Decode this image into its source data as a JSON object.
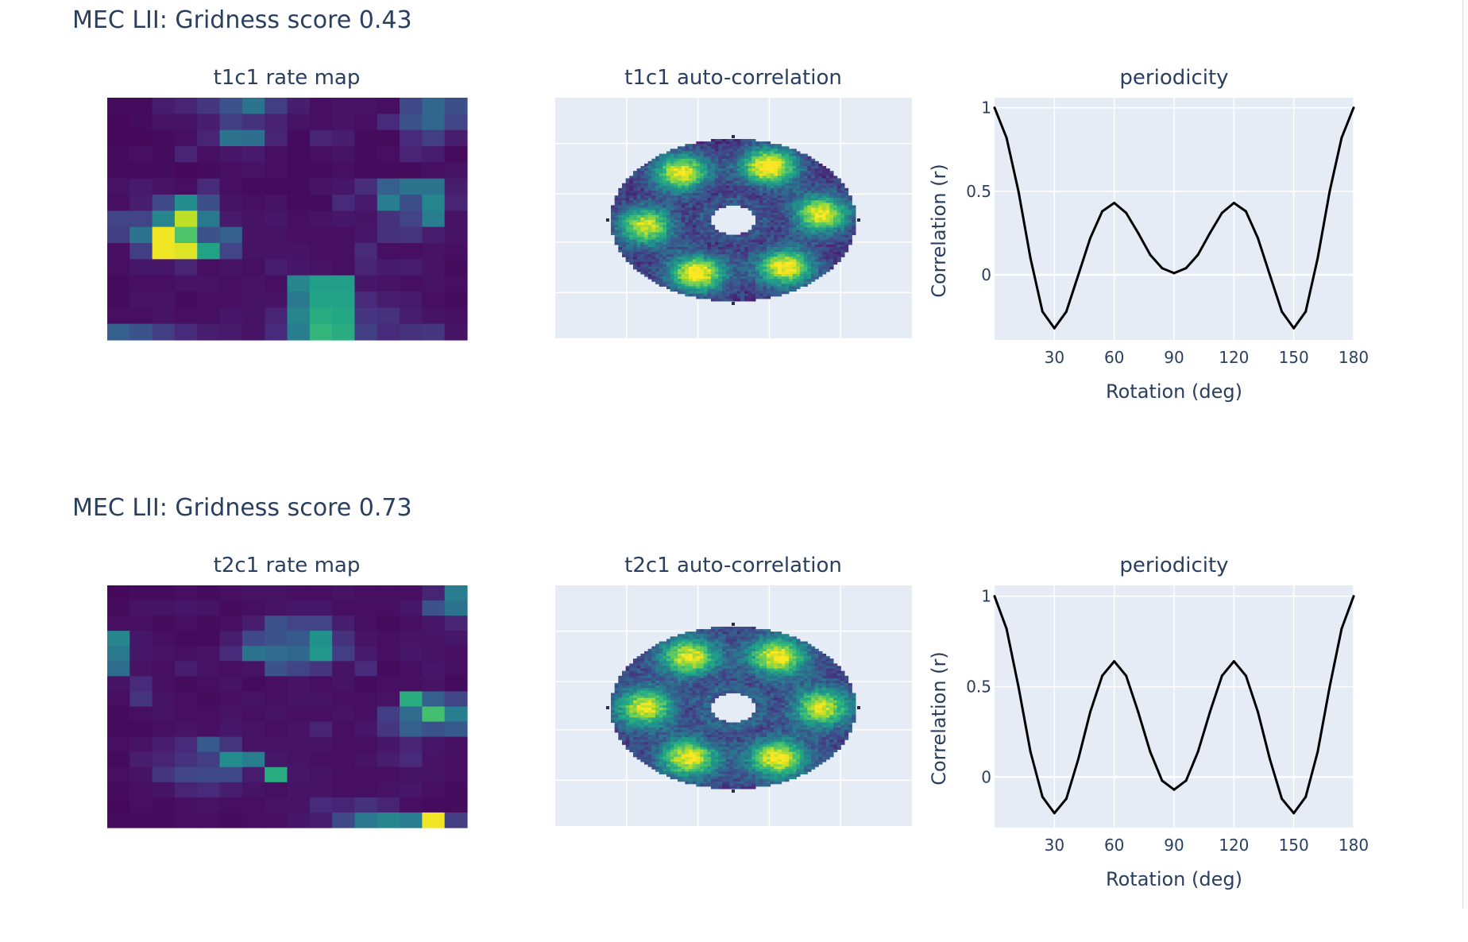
{
  "figures": [
    {
      "title": "MEC LII: Gridness score 0.43",
      "panels": {
        "rate_map_title": "t1c1 rate map",
        "autocorr_title": "t1c1 auto-correlation",
        "periodicity_title": "periodicity"
      },
      "rate_map": [
        [
          0.03,
          0.03,
          0.08,
          0.1,
          0.16,
          0.25,
          0.38,
          0.18,
          0.08,
          0.04,
          0.05,
          0.05,
          0.04,
          0.22,
          0.33,
          0.24
        ],
        [
          0.02,
          0.03,
          0.05,
          0.05,
          0.08,
          0.18,
          0.14,
          0.09,
          0.05,
          0.04,
          0.05,
          0.04,
          0.12,
          0.25,
          0.33,
          0.2
        ],
        [
          0.02,
          0.02,
          0.03,
          0.04,
          0.1,
          0.38,
          0.36,
          0.1,
          0.03,
          0.1,
          0.08,
          0.03,
          0.03,
          0.12,
          0.18,
          0.08
        ],
        [
          0.03,
          0.04,
          0.03,
          0.1,
          0.04,
          0.06,
          0.07,
          0.04,
          0.03,
          0.04,
          0.05,
          0.03,
          0.04,
          0.1,
          0.08,
          0.03
        ],
        [
          0.03,
          0.03,
          0.03,
          0.02,
          0.03,
          0.04,
          0.05,
          0.04,
          0.03,
          0.03,
          0.04,
          0.03,
          0.03,
          0.03,
          0.04,
          0.05
        ],
        [
          0.05,
          0.07,
          0.05,
          0.04,
          0.12,
          0.04,
          0.03,
          0.03,
          0.03,
          0.05,
          0.06,
          0.13,
          0.3,
          0.38,
          0.38,
          0.08
        ],
        [
          0.04,
          0.08,
          0.22,
          0.48,
          0.24,
          0.05,
          0.04,
          0.05,
          0.03,
          0.03,
          0.12,
          0.07,
          0.42,
          0.24,
          0.46,
          0.1
        ],
        [
          0.2,
          0.2,
          0.45,
          0.9,
          0.4,
          0.07,
          0.05,
          0.06,
          0.04,
          0.05,
          0.06,
          0.05,
          0.14,
          0.2,
          0.42,
          0.05
        ],
        [
          0.18,
          0.38,
          0.98,
          0.72,
          0.25,
          0.3,
          0.05,
          0.05,
          0.04,
          0.04,
          0.04,
          0.06,
          0.14,
          0.15,
          0.08,
          0.05
        ],
        [
          0.04,
          0.18,
          0.98,
          0.95,
          0.58,
          0.2,
          0.05,
          0.05,
          0.05,
          0.04,
          0.04,
          0.12,
          0.04,
          0.04,
          0.05,
          0.04
        ],
        [
          0.04,
          0.06,
          0.06,
          0.1,
          0.04,
          0.05,
          0.04,
          0.08,
          0.06,
          0.05,
          0.04,
          0.1,
          0.07,
          0.08,
          0.05,
          0.03
        ],
        [
          0.03,
          0.04,
          0.04,
          0.05,
          0.05,
          0.04,
          0.05,
          0.04,
          0.45,
          0.55,
          0.55,
          0.06,
          0.05,
          0.04,
          0.05,
          0.04
        ],
        [
          0.03,
          0.05,
          0.05,
          0.03,
          0.04,
          0.04,
          0.05,
          0.05,
          0.4,
          0.58,
          0.58,
          0.12,
          0.08,
          0.07,
          0.04,
          0.03
        ],
        [
          0.04,
          0.04,
          0.05,
          0.04,
          0.04,
          0.06,
          0.05,
          0.1,
          0.45,
          0.62,
          0.6,
          0.15,
          0.14,
          0.08,
          0.05,
          0.04
        ],
        [
          0.3,
          0.26,
          0.18,
          0.12,
          0.08,
          0.07,
          0.05,
          0.12,
          0.42,
          0.65,
          0.62,
          0.18,
          0.12,
          0.14,
          0.16,
          0.05
        ]
      ],
      "autocorr": {
        "peaks": [
          {
            "angle": 0,
            "intensity": 0.85
          },
          {
            "angle": 60,
            "intensity": 0.95
          },
          {
            "angle": 120,
            "intensity": 0.85
          },
          {
            "angle": 180,
            "intensity": 0.8
          },
          {
            "angle": 240,
            "intensity": 0.9
          },
          {
            "angle": 300,
            "intensity": 0.88
          }
        ],
        "peak_radius": 0.72,
        "rotation_deg": 6,
        "background": 0.15
      },
      "chart_data": {
        "type": "line",
        "x": [
          0,
          6,
          12,
          18,
          24,
          30,
          36,
          42,
          48,
          54,
          60,
          66,
          72,
          78,
          84,
          90,
          96,
          102,
          108,
          114,
          120,
          126,
          132,
          138,
          144,
          150,
          156,
          162,
          168,
          174,
          180
        ],
        "y": [
          1.0,
          0.82,
          0.5,
          0.1,
          -0.22,
          -0.32,
          -0.22,
          0.0,
          0.22,
          0.38,
          0.43,
          0.37,
          0.25,
          0.12,
          0.04,
          0.01,
          0.04,
          0.12,
          0.25,
          0.37,
          0.43,
          0.38,
          0.22,
          0.0,
          -0.22,
          -0.32,
          -0.22,
          0.1,
          0.5,
          0.82,
          1.0
        ],
        "xlabel": "Rotation (deg)",
        "ylabel": "Correlation (r)",
        "xticks": [
          30,
          60,
          90,
          120,
          150,
          180
        ],
        "yticks": [
          0,
          0.5,
          1
        ],
        "xlim": [
          0,
          180
        ],
        "ylim": [
          -0.39,
          1.06
        ],
        "line_color": "#000000",
        "grid": true
      }
    },
    {
      "title": "MEC LII: Gridness score 0.73",
      "panels": {
        "rate_map_title": "t2c1 rate map",
        "autocorr_title": "t2c1 auto-correlation",
        "periodicity_title": "periodicity"
      },
      "rate_map": [
        [
          0.02,
          0.03,
          0.03,
          0.04,
          0.03,
          0.04,
          0.05,
          0.05,
          0.04,
          0.04,
          0.05,
          0.04,
          0.04,
          0.04,
          0.1,
          0.42
        ],
        [
          0.03,
          0.05,
          0.05,
          0.06,
          0.05,
          0.03,
          0.04,
          0.05,
          0.06,
          0.06,
          0.04,
          0.04,
          0.04,
          0.06,
          0.25,
          0.38
        ],
        [
          0.04,
          0.04,
          0.03,
          0.04,
          0.03,
          0.04,
          0.08,
          0.25,
          0.2,
          0.2,
          0.08,
          0.04,
          0.03,
          0.04,
          0.06,
          0.1
        ],
        [
          0.45,
          0.06,
          0.04,
          0.03,
          0.03,
          0.08,
          0.22,
          0.26,
          0.28,
          0.5,
          0.14,
          0.05,
          0.04,
          0.05,
          0.05,
          0.06
        ],
        [
          0.4,
          0.06,
          0.05,
          0.04,
          0.05,
          0.12,
          0.38,
          0.35,
          0.33,
          0.52,
          0.18,
          0.07,
          0.04,
          0.06,
          0.05,
          0.04
        ],
        [
          0.35,
          0.05,
          0.04,
          0.08,
          0.05,
          0.04,
          0.05,
          0.25,
          0.2,
          0.15,
          0.05,
          0.12,
          0.03,
          0.04,
          0.06,
          0.04
        ],
        [
          0.05,
          0.12,
          0.04,
          0.03,
          0.04,
          0.05,
          0.03,
          0.04,
          0.05,
          0.04,
          0.05,
          0.03,
          0.04,
          0.04,
          0.05,
          0.03
        ],
        [
          0.04,
          0.15,
          0.05,
          0.04,
          0.03,
          0.04,
          0.05,
          0.04,
          0.05,
          0.05,
          0.04,
          0.04,
          0.05,
          0.62,
          0.3,
          0.2
        ],
        [
          0.03,
          0.04,
          0.05,
          0.04,
          0.04,
          0.05,
          0.04,
          0.05,
          0.04,
          0.04,
          0.05,
          0.04,
          0.18,
          0.35,
          0.7,
          0.42
        ],
        [
          0.03,
          0.03,
          0.04,
          0.05,
          0.04,
          0.06,
          0.05,
          0.04,
          0.05,
          0.1,
          0.04,
          0.06,
          0.16,
          0.3,
          0.25,
          0.28
        ],
        [
          0.04,
          0.05,
          0.08,
          0.12,
          0.28,
          0.15,
          0.05,
          0.05,
          0.05,
          0.05,
          0.04,
          0.04,
          0.06,
          0.1,
          0.06,
          0.04
        ],
        [
          0.03,
          0.08,
          0.1,
          0.14,
          0.18,
          0.48,
          0.42,
          0.06,
          0.05,
          0.04,
          0.04,
          0.05,
          0.08,
          0.12,
          0.05,
          0.04
        ],
        [
          0.04,
          0.05,
          0.16,
          0.2,
          0.22,
          0.22,
          0.08,
          0.62,
          0.06,
          0.05,
          0.04,
          0.04,
          0.04,
          0.05,
          0.05,
          0.04
        ],
        [
          0.03,
          0.04,
          0.05,
          0.1,
          0.12,
          0.08,
          0.05,
          0.04,
          0.05,
          0.05,
          0.04,
          0.04,
          0.05,
          0.06,
          0.04,
          0.03
        ],
        [
          0.02,
          0.04,
          0.03,
          0.04,
          0.05,
          0.04,
          0.04,
          0.05,
          0.05,
          0.12,
          0.1,
          0.14,
          0.1,
          0.04,
          0.03,
          0.03
        ],
        [
          0.03,
          0.03,
          0.03,
          0.04,
          0.04,
          0.03,
          0.04,
          0.04,
          0.06,
          0.08,
          0.22,
          0.4,
          0.45,
          0.42,
          0.98,
          0.18
        ]
      ],
      "autocorr": {
        "peaks": [
          {
            "angle": 0,
            "intensity": 0.75
          },
          {
            "angle": 60,
            "intensity": 0.82
          },
          {
            "angle": 120,
            "intensity": 0.8
          },
          {
            "angle": 180,
            "intensity": 0.78
          },
          {
            "angle": 240,
            "intensity": 0.8
          },
          {
            "angle": 300,
            "intensity": 0.82
          }
        ],
        "peak_radius": 0.72,
        "rotation_deg": 0,
        "background": 0.2
      },
      "chart_data": {
        "type": "line",
        "x": [
          0,
          6,
          12,
          18,
          24,
          30,
          36,
          42,
          48,
          54,
          60,
          66,
          72,
          78,
          84,
          90,
          96,
          102,
          108,
          114,
          120,
          126,
          132,
          138,
          144,
          150,
          156,
          162,
          168,
          174,
          180
        ],
        "y": [
          1.0,
          0.82,
          0.5,
          0.14,
          -0.11,
          -0.2,
          -0.12,
          0.1,
          0.36,
          0.56,
          0.64,
          0.56,
          0.36,
          0.14,
          -0.02,
          -0.07,
          -0.02,
          0.14,
          0.36,
          0.56,
          0.64,
          0.56,
          0.36,
          0.1,
          -0.12,
          -0.2,
          -0.11,
          0.14,
          0.5,
          0.82,
          1.0
        ],
        "xlabel": "Rotation (deg)",
        "ylabel": "Correlation (r)",
        "xticks": [
          30,
          60,
          90,
          120,
          150,
          180
        ],
        "yticks": [
          0,
          0.5,
          1
        ],
        "xlim": [
          0,
          180
        ],
        "ylim": [
          -0.28,
          1.06
        ],
        "line_color": "#000000",
        "grid": true
      }
    }
  ]
}
